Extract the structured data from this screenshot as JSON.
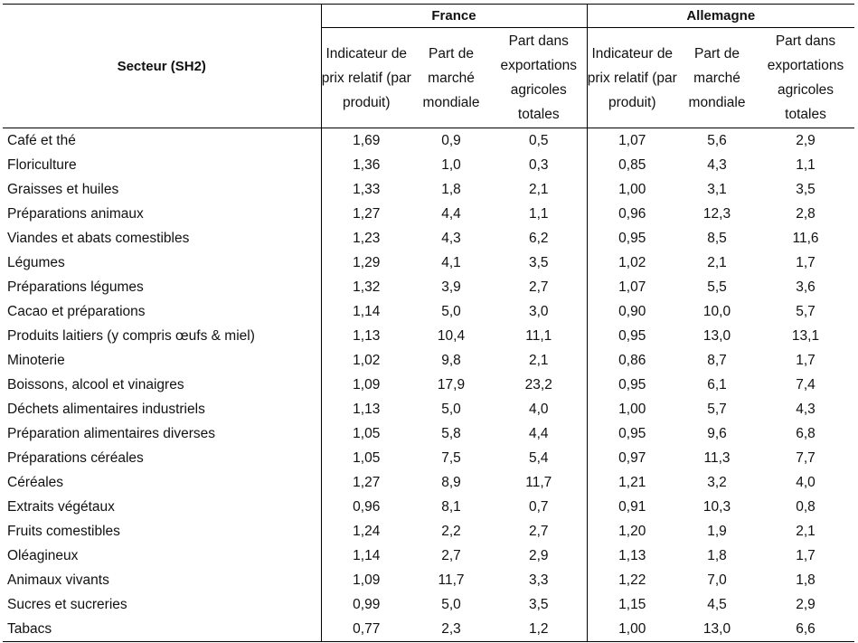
{
  "table": {
    "sector_header": "Secteur (SH2)",
    "countries": [
      "France",
      "Allemagne"
    ],
    "sub_headers": [
      "Indicateur de prix relatif (par produit)",
      "Part de marché mondiale",
      "Part dans exportations agricoles totales"
    ],
    "rows": [
      {
        "sector": "Café et thé",
        "values": [
          "1,69",
          "0,9",
          "0,5",
          "1,07",
          "5,6",
          "2,9"
        ]
      },
      {
        "sector": "Floriculture",
        "values": [
          "1,36",
          "1,0",
          "0,3",
          "0,85",
          "4,3",
          "1,1"
        ]
      },
      {
        "sector": "Graisses et huiles",
        "values": [
          "1,33",
          "1,8",
          "2,1",
          "1,00",
          "3,1",
          "3,5"
        ]
      },
      {
        "sector": "Préparations animaux",
        "values": [
          "1,27",
          "4,4",
          "1,1",
          "0,96",
          "12,3",
          "2,8"
        ]
      },
      {
        "sector": "Viandes et abats comestibles",
        "values": [
          "1,23",
          "4,3",
          "6,2",
          "0,95",
          "8,5",
          "11,6"
        ]
      },
      {
        "sector": "Légumes",
        "values": [
          "1,29",
          "4,1",
          "3,5",
          "1,02",
          "2,1",
          "1,7"
        ]
      },
      {
        "sector": "Préparations légumes",
        "values": [
          "1,32",
          "3,9",
          "2,7",
          "1,07",
          "5,5",
          "3,6"
        ]
      },
      {
        "sector": "Cacao et préparations",
        "values": [
          "1,14",
          "5,0",
          "3,0",
          "0,90",
          "10,0",
          "5,7"
        ]
      },
      {
        "sector": "Produits laitiers (y compris œufs & miel)",
        "values": [
          "1,13",
          "10,4",
          "11,1",
          "0,95",
          "13,0",
          "13,1"
        ]
      },
      {
        "sector": "Minoterie",
        "values": [
          "1,02",
          "9,8",
          "2,1",
          "0,86",
          "8,7",
          "1,7"
        ]
      },
      {
        "sector": "Boissons, alcool et vinaigres",
        "values": [
          "1,09",
          "17,9",
          "23,2",
          "0,95",
          "6,1",
          "7,4"
        ]
      },
      {
        "sector": "Déchets alimentaires industriels",
        "values": [
          "1,13",
          "5,0",
          "4,0",
          "1,00",
          "5,7",
          "4,3"
        ]
      },
      {
        "sector": "Préparation alimentaires diverses",
        "values": [
          "1,05",
          "5,8",
          "4,4",
          "0,95",
          "9,6",
          "6,8"
        ]
      },
      {
        "sector": "Préparations céréales",
        "values": [
          "1,05",
          "7,5",
          "5,4",
          "0,97",
          "11,3",
          "7,7"
        ]
      },
      {
        "sector": "Céréales",
        "values": [
          "1,27",
          "8,9",
          "11,7",
          "1,21",
          "3,2",
          "4,0"
        ]
      },
      {
        "sector": "Extraits végétaux",
        "values": [
          "0,96",
          "8,1",
          "0,7",
          "0,91",
          "10,3",
          "0,8"
        ]
      },
      {
        "sector": "Fruits comestibles",
        "values": [
          "1,24",
          "2,2",
          "2,7",
          "1,20",
          "1,9",
          "2,1"
        ]
      },
      {
        "sector": "Oléagineux",
        "values": [
          "1,14",
          "2,7",
          "2,9",
          "1,13",
          "1,8",
          "1,7"
        ]
      },
      {
        "sector": "Animaux vivants",
        "values": [
          "1,09",
          "11,7",
          "3,3",
          "1,22",
          "7,0",
          "1,8"
        ]
      },
      {
        "sector": "Sucres et sucreries",
        "values": [
          "0,99",
          "5,0",
          "3,5",
          "1,15",
          "4,5",
          "2,9"
        ]
      },
      {
        "sector": "Tabacs",
        "values": [
          "0,77",
          "2,3",
          "1,2",
          "1,00",
          "13,0",
          "6,6"
        ]
      }
    ]
  }
}
